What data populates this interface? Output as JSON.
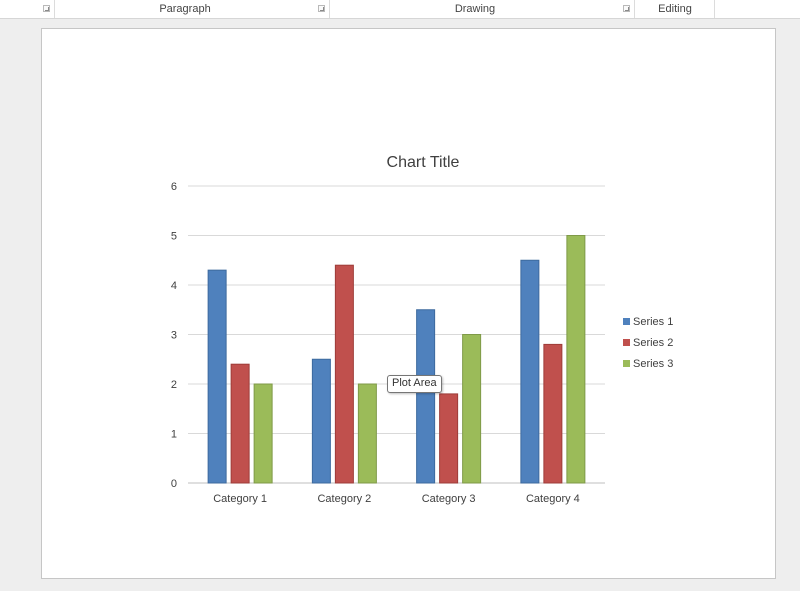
{
  "ribbon": {
    "groups": [
      {
        "label": "Paragraph"
      },
      {
        "label": "Drawing"
      },
      {
        "label": "Editing"
      }
    ]
  },
  "tooltip": {
    "text": "Plot Area"
  },
  "colors": {
    "series1": "#4f81bd",
    "series2": "#c0504d",
    "series3": "#9bbb59"
  },
  "chart_data": {
    "type": "bar",
    "title": "Chart Title",
    "categories": [
      "Category 1",
      "Category 2",
      "Category 3",
      "Category 4"
    ],
    "series": [
      {
        "name": "Series 1",
        "values": [
          4.3,
          2.5,
          3.5,
          4.5
        ]
      },
      {
        "name": "Series 2",
        "values": [
          2.4,
          4.4,
          1.8,
          2.8
        ]
      },
      {
        "name": "Series 3",
        "values": [
          2,
          2,
          3,
          5
        ]
      }
    ],
    "ylim": [
      0,
      6
    ],
    "yticks": [
      "0",
      "1",
      "2",
      "3",
      "4",
      "5",
      "6"
    ],
    "grid": true,
    "legend": "right"
  }
}
